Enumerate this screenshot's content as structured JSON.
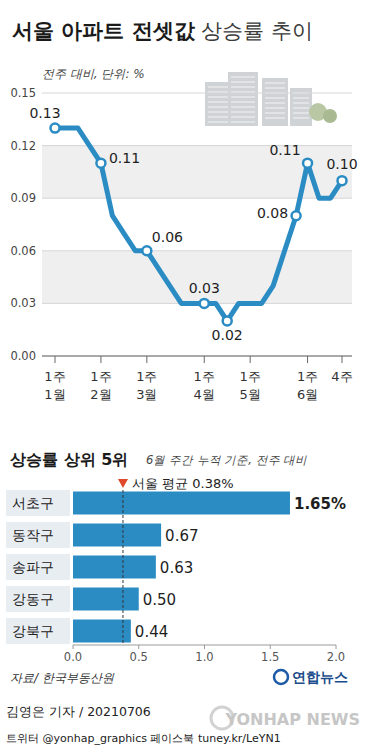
{
  "chart_data": [
    {
      "type": "line",
      "title": "서울 아파트 전셋값 상승률 추이",
      "subtitle": "전주 대비, 단위: %",
      "categories": [
        "1주\n1월",
        null,
        null,
        null,
        "1주\n2월",
        null,
        null,
        null,
        "1주\n3월",
        null,
        null,
        null,
        null,
        "1주\n4월",
        null,
        null,
        null,
        "1주\n5월",
        null,
        null,
        null,
        null,
        "1주\n6월",
        null,
        null,
        "4주"
      ],
      "values": [
        0.13,
        0.13,
        0.13,
        0.12,
        0.11,
        0.08,
        0.07,
        0.06,
        0.06,
        0.05,
        0.04,
        0.03,
        0.03,
        0.03,
        0.03,
        0.02,
        0.03,
        0.03,
        0.03,
        0.04,
        0.06,
        0.08,
        0.11,
        0.09,
        0.09,
        0.1
      ],
      "value_labels": [
        "0.13",
        null,
        null,
        null,
        "0.11",
        null,
        null,
        null,
        "0.06",
        null,
        null,
        null,
        null,
        "0.03",
        null,
        "0.02",
        null,
        null,
        null,
        null,
        null,
        "0.08",
        "0.11",
        null,
        null,
        "0.10"
      ],
      "color": "#2b8cc4",
      "marker": "circle",
      "data_labels": true,
      "grid": true,
      "ylim": [
        0,
        0.15
      ],
      "yticks": [
        {
          "value": 0,
          "label": "0.00"
        },
        {
          "value": 0.03,
          "label": "0.03"
        },
        {
          "value": 0.06,
          "label": "0.06"
        },
        {
          "value": 0.09,
          "label": "0.09"
        },
        {
          "value": 0.12,
          "label": "0.12"
        },
        {
          "value": 0.15,
          "label": "0.15"
        }
      ]
    },
    {
      "type": "bar",
      "orientation": "horizontal",
      "title": "상승률 상위 5위",
      "subtitle": "6월 주간 누적 기준, 전주 대비",
      "categories": [
        "서초구",
        "동작구",
        "송파구",
        "강동구",
        "강북구"
      ],
      "values": [
        1.65,
        0.67,
        0.63,
        0.5,
        0.44
      ],
      "value_labels": [
        "1.65%",
        "0.67",
        "0.63",
        "0.50",
        "0.44"
      ],
      "color": "#2b8cc4",
      "data_labels": true,
      "xlim": [
        0,
        2
      ],
      "xticks": [
        {
          "value": 0,
          "label": "0.0"
        },
        0.5,
        {
          "value": 1,
          "label": "1.0"
        },
        1.5,
        {
          "value": 2,
          "label": "2.0"
        }
      ],
      "reference_line": {
        "value": 0.38,
        "label": "서울 평균 0.38%"
      }
    }
  ],
  "footer": {
    "source": "자료/ 한국부동산원",
    "logo": "연합뉴스",
    "byline": "김영은 기자 / 20210706",
    "social": "트위터 @yonhap_graphics 페이스북 tuney.kr/LeYN1",
    "watermark": "YONHAP NEWS"
  }
}
